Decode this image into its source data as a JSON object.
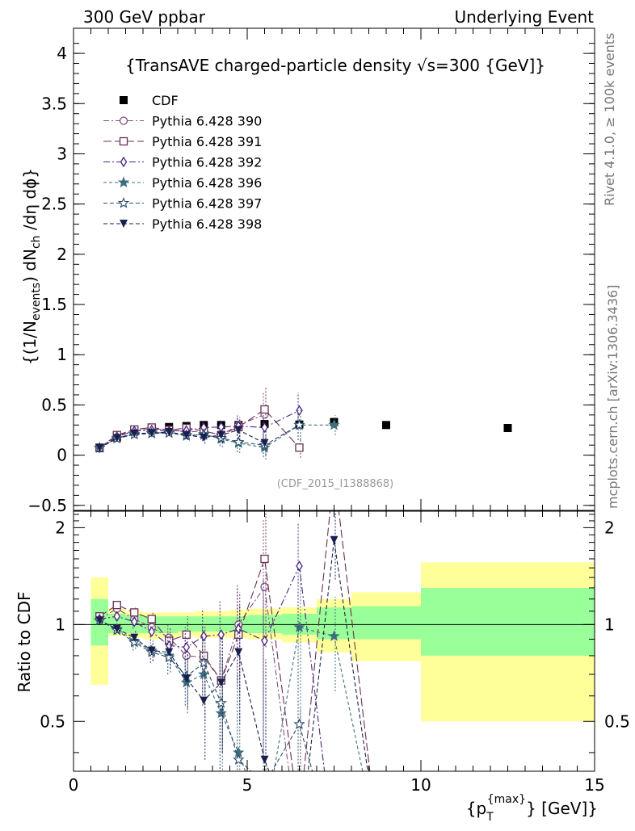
{
  "header": {
    "left_label": "300 GeV ppbar",
    "right_label": "Underlying Event"
  },
  "side_labels": {
    "rivet": "Rivet 4.1.0, ≥ 100k events",
    "mcplots": "mcplots.cern.ch [arXiv:1306.3436]"
  },
  "analysis_tag": "(CDF_2015_I1388868)",
  "colors": {
    "c390": "#7f4f80",
    "c391": "#6a2f4f",
    "c392": "#4a2480",
    "c396": "#3f6f7f",
    "c397": "#2f4f6f",
    "c398": "#1a1f4f",
    "band_outer": "#ffff99",
    "band_inner": "#99ff99"
  },
  "chart_data": [
    {
      "type": "scatter",
      "panel": "main",
      "title": "{TransAVE charged-particle density √s=300 {GeV]}",
      "ylabel": "{(1/N_events) dN_ch /dη dϕ}",
      "ylabel_parts": [
        "{(1/N",
        "events",
        ") dN",
        "ch",
        " /dη dϕ}"
      ],
      "xlim": [
        0,
        15
      ],
      "ylim": [
        -0.55,
        4.25
      ],
      "yticks": [
        -0.5,
        0,
        0.5,
        1,
        1.5,
        2,
        2.5,
        3,
        3.5,
        4
      ],
      "ytick_labels": [
        "−0.5",
        "0",
        "0.5",
        "1",
        "1.5",
        "2",
        "2.5",
        "3",
        "3.5",
        "4"
      ],
      "x": [
        0.75,
        1.25,
        1.75,
        2.25,
        2.75,
        3.25,
        3.75,
        4.25,
        4.75,
        5.5,
        6.5,
        7.5,
        9.0,
        12.5
      ],
      "series": [
        {
          "name": "CDF",
          "key": "cdf",
          "marker": "filled-square",
          "values": [
            0.07,
            0.175,
            0.235,
            0.265,
            0.28,
            0.29,
            0.3,
            0.3,
            0.3,
            0.31,
            0.305,
            0.33,
            0.3,
            0.27
          ]
        },
        {
          "name": "Pythia 6.428 390",
          "key": "c390",
          "marker": "open-circle",
          "dash": "7,3,2,3",
          "values": [
            0.073,
            0.195,
            0.245,
            0.26,
            0.255,
            0.23,
            0.24,
            0.2,
            0.3,
            0.405,
            null,
            null,
            null,
            null
          ],
          "errors": [
            0.005,
            0.01,
            0.015,
            0.02,
            0.03,
            0.04,
            0.06,
            0.08,
            0.1,
            0.22,
            null,
            null,
            null,
            null
          ]
        },
        {
          "name": "Pythia 6.428 391",
          "key": "c391",
          "marker": "open-square",
          "dash": "10,4",
          "values": [
            0.075,
            0.2,
            0.255,
            0.275,
            0.25,
            0.27,
            0.24,
            0.2,
            0.28,
            0.455,
            0.075,
            null,
            null,
            null
          ],
          "errors": [
            0.005,
            0.01,
            0.015,
            0.02,
            0.03,
            0.04,
            0.06,
            0.08,
            0.1,
            0.22,
            0.1,
            null,
            null,
            null
          ]
        },
        {
          "name": "Pythia 6.428 392",
          "key": "c392",
          "marker": "open-diamond",
          "dash": "8,3,2,3",
          "values": [
            0.073,
            0.185,
            0.24,
            0.25,
            0.24,
            0.245,
            0.275,
            0.28,
            0.29,
            0.275,
            0.445,
            null,
            null,
            null
          ],
          "errors": [
            0.005,
            0.01,
            0.015,
            0.02,
            0.03,
            0.04,
            0.06,
            0.08,
            0.1,
            0.15,
            0.18,
            null,
            null,
            null
          ]
        },
        {
          "name": "Pythia 6.428 396",
          "key": "c396",
          "marker": "filled-star",
          "dash": "4,3",
          "values": [
            0.072,
            0.17,
            0.21,
            0.22,
            0.225,
            0.19,
            0.21,
            0.16,
            0.12,
            0.075,
            0.3,
            0.3,
            null,
            null
          ],
          "errors": [
            0.005,
            0.01,
            0.015,
            0.02,
            0.03,
            0.04,
            0.06,
            0.08,
            0.1,
            0.12,
            0.15,
            0.1,
            null,
            null
          ]
        },
        {
          "name": "Pythia 6.428 397",
          "key": "c397",
          "marker": "open-star",
          "dash": "5,3",
          "values": [
            0.072,
            0.165,
            0.205,
            0.215,
            0.22,
            0.2,
            0.2,
            0.17,
            0.13,
            0.1,
            0.3,
            null,
            null,
            null
          ],
          "errors": [
            0.005,
            0.01,
            0.015,
            0.02,
            0.03,
            0.04,
            0.06,
            0.08,
            0.1,
            0.12,
            0.15,
            null,
            null,
            null
          ]
        },
        {
          "name": "Pythia 6.428 398",
          "key": "c398",
          "marker": "filled-triangle-down",
          "dash": "5,3",
          "values": [
            0.072,
            0.17,
            0.215,
            0.22,
            0.23,
            0.2,
            0.175,
            0.2,
            0.25,
            0.12,
            null,
            null,
            null,
            null
          ],
          "errors": [
            0.005,
            0.01,
            0.015,
            0.02,
            0.03,
            0.04,
            0.06,
            0.08,
            0.1,
            0.12,
            null,
            null,
            null,
            null
          ]
        }
      ]
    },
    {
      "type": "line",
      "panel": "ratio",
      "ylabel": "Ratio to CDF",
      "xlabel": "{p_T^{max}} [GeV]}",
      "xlabel_parts": [
        "{p",
        "T",
        "{max}",
        "} [GeV]}"
      ],
      "xlim": [
        0,
        15
      ],
      "ylim": [
        0.35,
        2.25
      ],
      "xticks": [
        0,
        5,
        10,
        15
      ],
      "yticks": [
        0.5,
        1,
        2
      ],
      "reference": 1,
      "bins": [
        [
          0.5,
          1.0
        ],
        [
          1.0,
          1.5
        ],
        [
          1.5,
          2.0
        ],
        [
          2.0,
          2.5
        ],
        [
          2.5,
          3.0
        ],
        [
          3.0,
          3.5
        ],
        [
          3.5,
          4.0
        ],
        [
          4.0,
          4.5
        ],
        [
          4.5,
          5.0
        ],
        [
          5.0,
          6.0
        ],
        [
          6.0,
          7.0
        ],
        [
          7.0,
          8.0
        ],
        [
          8.0,
          10.0
        ],
        [
          10.0,
          15.0
        ]
      ],
      "band_outer": [
        [
          0.65,
          1.4
        ],
        [
          0.92,
          1.12
        ],
        [
          0.91,
          1.1
        ],
        [
          0.9,
          1.09
        ],
        [
          0.91,
          1.09
        ],
        [
          0.92,
          1.09
        ],
        [
          0.91,
          1.1
        ],
        [
          0.91,
          1.1
        ],
        [
          0.91,
          1.11
        ],
        [
          0.9,
          1.12
        ],
        [
          0.88,
          1.13
        ],
        [
          0.82,
          1.2
        ],
        [
          0.77,
          1.26
        ],
        [
          0.5,
          1.56
        ]
      ],
      "band_inner": [
        [
          0.86,
          1.2
        ],
        [
          0.94,
          1.08
        ],
        [
          0.94,
          1.07
        ],
        [
          0.94,
          1.06
        ],
        [
          0.94,
          1.06
        ],
        [
          0.95,
          1.06
        ],
        [
          0.95,
          1.06
        ],
        [
          0.95,
          1.06
        ],
        [
          0.95,
          1.06
        ],
        [
          0.94,
          1.07
        ],
        [
          0.93,
          1.08
        ],
        [
          0.9,
          1.13
        ],
        [
          0.9,
          1.14
        ],
        [
          0.8,
          1.3
        ]
      ],
      "x": [
        0.75,
        1.25,
        1.75,
        2.25,
        2.75,
        3.25,
        3.75,
        4.25,
        4.75,
        5.5,
        6.5,
        7.5,
        8.8
      ],
      "series": [
        {
          "name": "Pythia 6.428 390",
          "key": "c390",
          "marker": "open-circle",
          "dash": "7,3,2,3",
          "values": [
            1.04,
            1.12,
            1.04,
            0.98,
            0.91,
            0.8,
            0.79,
            0.67,
            1.0,
            1.31,
            0.2,
            null,
            null
          ],
          "errors": [
            0.02,
            0.03,
            0.05,
            0.06,
            0.09,
            0.13,
            0.2,
            0.26,
            0.33,
            0.8,
            null,
            null,
            null
          ]
        },
        {
          "name": "Pythia 6.428 391",
          "key": "c391",
          "marker": "open-square",
          "dash": "10,4",
          "values": [
            1.06,
            1.15,
            1.09,
            1.04,
            0.89,
            0.93,
            0.8,
            0.67,
            0.93,
            1.6,
            0.25,
            3.0,
            0.2
          ],
          "errors": [
            0.02,
            0.03,
            0.05,
            0.06,
            0.09,
            0.13,
            0.2,
            0.26,
            0.33,
            0.75,
            0.3,
            null,
            null
          ]
        },
        {
          "name": "Pythia 6.428 392",
          "key": "c392",
          "marker": "open-diamond",
          "dash": "8,3,2,3",
          "values": [
            1.04,
            1.06,
            1.02,
            0.95,
            0.86,
            0.85,
            0.92,
            0.93,
            0.97,
            0.89,
            1.52,
            0.2,
            null
          ],
          "errors": [
            0.02,
            0.03,
            0.05,
            0.06,
            0.09,
            0.13,
            0.2,
            0.26,
            0.33,
            0.5,
            0.55,
            null,
            null
          ]
        },
        {
          "name": "Pythia 6.428 396",
          "key": "c396",
          "marker": "filled-star",
          "dash": "4,3",
          "values": [
            1.03,
            0.97,
            0.89,
            0.83,
            0.8,
            0.66,
            0.7,
            0.53,
            0.4,
            0.24,
            0.98,
            0.92,
            0.2
          ],
          "errors": [
            0.02,
            0.03,
            0.05,
            0.06,
            0.09,
            0.13,
            0.2,
            0.26,
            0.33,
            0.4,
            0.5,
            0.3,
            null
          ]
        },
        {
          "name": "Pythia 6.428 397",
          "key": "c397",
          "marker": "open-star",
          "dash": "5,3",
          "values": [
            1.03,
            0.96,
            0.88,
            0.82,
            0.79,
            0.69,
            0.76,
            0.57,
            0.38,
            0.32,
            0.49,
            0.2,
            null
          ],
          "errors": [
            0.02,
            0.03,
            0.05,
            0.06,
            0.09,
            0.13,
            0.2,
            0.26,
            0.33,
            0.4,
            0.5,
            null,
            null
          ]
        },
        {
          "name": "Pythia 6.428 398",
          "key": "c398",
          "marker": "filled-triangle-down",
          "dash": "5,3",
          "values": [
            1.03,
            0.97,
            0.91,
            0.83,
            0.82,
            0.68,
            0.58,
            0.66,
            0.82,
            0.38,
            0.2,
            1.83,
            0.2
          ],
          "errors": [
            0.02,
            0.03,
            0.05,
            0.06,
            0.09,
            0.13,
            0.2,
            0.26,
            0.33,
            0.4,
            null,
            0.45,
            null
          ]
        }
      ]
    }
  ]
}
